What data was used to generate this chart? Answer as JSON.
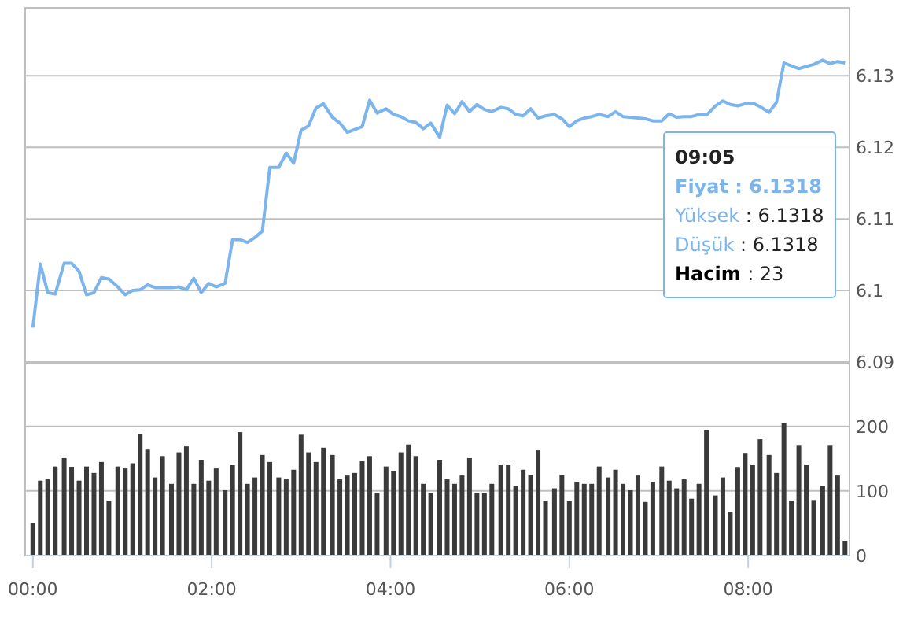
{
  "chart_data": [
    {
      "type": "line",
      "x": [
        0,
        5,
        10,
        15,
        21,
        26,
        31,
        36,
        41,
        46,
        51,
        57,
        62,
        67,
        72,
        77,
        82,
        87,
        93,
        98,
        103,
        108,
        113,
        118,
        123,
        129,
        134,
        139,
        144,
        149,
        154,
        159,
        165,
        170,
        175,
        180,
        185,
        190,
        195,
        201,
        206,
        211,
        216,
        221,
        226,
        231,
        237,
        242,
        247,
        252,
        257,
        262,
        267,
        273,
        278,
        283,
        288,
        293,
        298,
        303,
        308,
        314,
        319,
        324,
        329,
        334,
        339,
        344,
        350,
        355,
        360,
        365,
        370,
        375,
        380,
        386,
        391,
        396,
        401,
        406,
        411,
        416,
        422,
        427,
        432,
        437,
        442,
        447,
        452,
        458,
        463,
        468,
        473,
        478,
        483,
        488,
        494,
        499,
        504,
        509,
        514,
        519,
        524,
        530,
        535,
        540,
        545
      ],
      "series": [
        {
          "color": "#7cb5ec",
          "values": [
            6.0948,
            6.1037,
            6.0997,
            6.0995,
            6.1038,
            6.1038,
            6.1027,
            6.0994,
            6.0997,
            6.1018,
            6.1016,
            6.1005,
            6.0994,
            6.1,
            6.1001,
            6.1008,
            6.1004,
            6.1004,
            6.1004,
            6.1005,
            6.1001,
            6.1017,
            6.0997,
            6.101,
            6.1005,
            6.101,
            6.1071,
            6.1071,
            6.1067,
            6.1074,
            6.1083,
            6.1172,
            6.1172,
            6.1192,
            6.1178,
            6.1224,
            6.123,
            6.1255,
            6.1261,
            6.1242,
            6.1234,
            6.1221,
            6.1225,
            6.1229,
            6.1266,
            6.1248,
            6.1254,
            6.1246,
            6.1243,
            6.1237,
            6.1235,
            6.1226,
            6.1234,
            6.1214,
            6.1259,
            6.1247,
            6.1264,
            6.125,
            6.126,
            6.1253,
            6.125,
            6.1256,
            6.1254,
            6.1246,
            6.1244,
            6.1254,
            6.1241,
            6.1244,
            6.1246,
            6.124,
            6.1229,
            6.1237,
            6.1241,
            6.1243,
            6.1246,
            6.1243,
            6.125,
            6.1243,
            6.1242,
            6.1241,
            6.124,
            6.1237,
            6.1237,
            6.1247,
            6.1242,
            6.1243,
            6.1243,
            6.1246,
            6.1245,
            6.1258,
            6.1265,
            6.126,
            6.1258,
            6.1261,
            6.1262,
            6.1257,
            6.1249,
            6.1263,
            6.1318,
            6.1314,
            6.131,
            6.1313,
            6.1316,
            6.1322,
            6.1317,
            6.132,
            6.1318
          ]
        }
      ],
      "xlim": [
        -2,
        548
      ],
      "ylim": [
        6.09,
        6.1395
      ],
      "yticks": [
        6.09,
        {
          "value": 6.1,
          "label": "6.1"
        },
        6.11,
        6.12,
        6.13
      ],
      "grid": "y",
      "tick_labels": "y",
      "marker": "none",
      "line_style": "solid",
      "annotations": [
        "09:05",
        "Fiyat : 6.1318",
        "Yüksek : 6.1318",
        "Düşük : 6.1318",
        "Hacim : 23"
      ]
    },
    {
      "type": "bar",
      "x": [
        0,
        5,
        10,
        15,
        21,
        26,
        31,
        36,
        41,
        46,
        51,
        57,
        62,
        67,
        72,
        77,
        82,
        87,
        93,
        98,
        103,
        108,
        113,
        118,
        123,
        129,
        134,
        139,
        144,
        149,
        154,
        159,
        165,
        170,
        175,
        180,
        185,
        190,
        195,
        201,
        206,
        211,
        216,
        221,
        226,
        231,
        237,
        242,
        247,
        252,
        257,
        262,
        267,
        273,
        278,
        283,
        288,
        293,
        298,
        303,
        308,
        314,
        319,
        324,
        329,
        334,
        339,
        344,
        350,
        355,
        360,
        365,
        370,
        375,
        380,
        386,
        391,
        396,
        401,
        406,
        411,
        416,
        422,
        427,
        432,
        437,
        442,
        447,
        452,
        458,
        463,
        468,
        473,
        478,
        483,
        488,
        494,
        499,
        504,
        509,
        514,
        519,
        524,
        530,
        535,
        540,
        545
      ],
      "series": [
        {
          "color": "#3a3a3a",
          "values": [
            51,
            116,
            118,
            138,
            151,
            137,
            116,
            138,
            128,
            145,
            85,
            138,
            135,
            143,
            188,
            164,
            121,
            153,
            111,
            160,
            169,
            111,
            148,
            116,
            135,
            101,
            140,
            191,
            111,
            121,
            156,
            145,
            121,
            118,
            133,
            187,
            160,
            145,
            167,
            156,
            118,
            124,
            128,
            146,
            153,
            97,
            138,
            131,
            160,
            172,
            153,
            111,
            97,
            148,
            118,
            111,
            124,
            151,
            97,
            97,
            111,
            140,
            140,
            108,
            133,
            125,
            163,
            85,
            104,
            125,
            85,
            114,
            111,
            111,
            138,
            121,
            133,
            111,
            101,
            124,
            83,
            114,
            138,
            116,
            104,
            118,
            88,
            111,
            194,
            93,
            121,
            68,
            136,
            158,
            140,
            180,
            156,
            128,
            205,
            85,
            170,
            140,
            86,
            108,
            170,
            124,
            23
          ]
        }
      ],
      "xlim": [
        -2,
        548
      ],
      "xticks": [
        {
          "value": 0,
          "label": "00:00"
        },
        {
          "value": 120,
          "label": "02:00"
        },
        {
          "value": 240,
          "label": "04:00"
        },
        {
          "value": 360,
          "label": "06:00"
        },
        {
          "value": 480,
          "label": "08:00"
        }
      ],
      "ylim": [
        0,
        297
      ],
      "yticks": [
        0,
        100,
        200
      ],
      "grid": "y"
    }
  ]
}
